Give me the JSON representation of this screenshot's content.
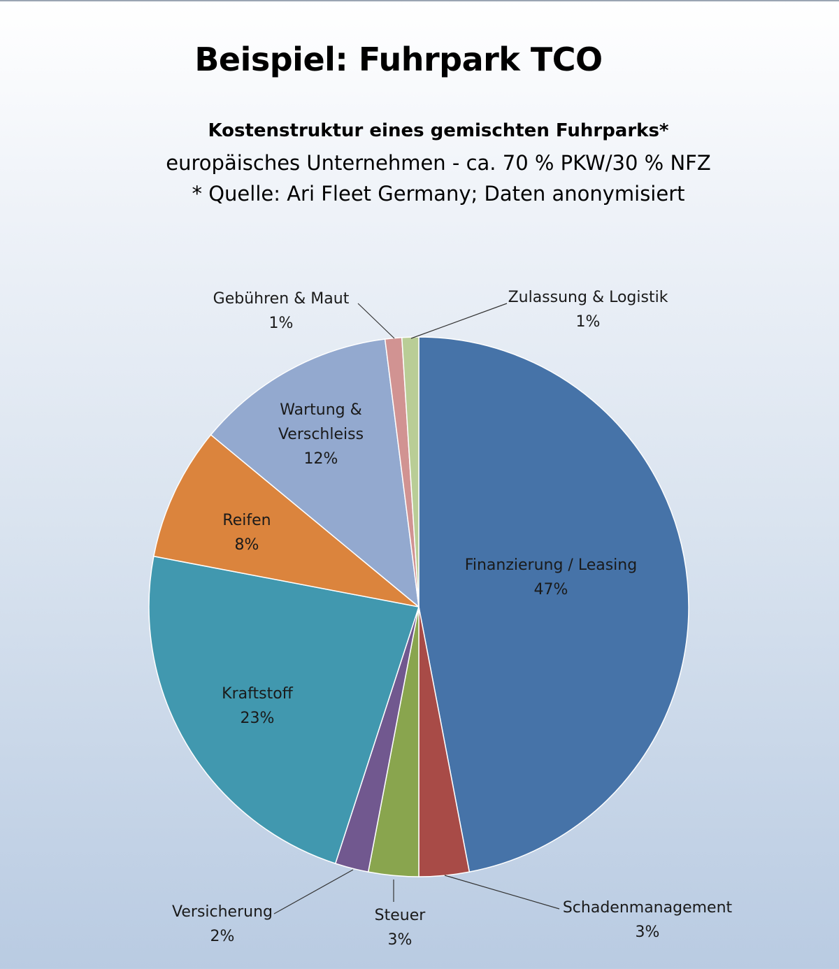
{
  "header": {
    "title": "Beispiel: Fuhrpark TCO",
    "subtitle_bold": "Kostenstruktur eines gemischten Fuhrparks*",
    "subtitle_line2": "europäisches Unternehmen - ca. 70 % PKW/30 % NFZ",
    "subtitle_line3": "* Quelle: Ari Fleet Germany; Daten anonymisiert"
  },
  "chart_data": {
    "type": "pie",
    "title": "Kostenstruktur eines gemischten Fuhrparks*",
    "value_unit": "%",
    "slices": [
      {
        "label": "Finanzierung / Leasing",
        "value": 47,
        "display": "47%",
        "color": "#4673a8"
      },
      {
        "label": "Schadenmanagement",
        "value": 3,
        "display": "3%",
        "color": "#a84b47"
      },
      {
        "label": "Steuer",
        "value": 3,
        "display": "3%",
        "color": "#89a54e"
      },
      {
        "label": "Versicherung",
        "value": 2,
        "display": "2%",
        "color": "#71588f"
      },
      {
        "label": "Kraftstoff",
        "value": 23,
        "display": "23%",
        "color": "#4198af"
      },
      {
        "label": "Reifen",
        "value": 8,
        "display": "8%",
        "color": "#db843d"
      },
      {
        "label": "Wartung & Verschleiss",
        "value": 12,
        "display": "12%",
        "color": "#93a9cf"
      },
      {
        "label": "Gebühren & Maut",
        "value": 1,
        "display": "1%",
        "color": "#d19392"
      },
      {
        "label": "Zulassung & Logistik",
        "value": 1,
        "display": "1%",
        "color": "#b9cd96"
      }
    ]
  }
}
